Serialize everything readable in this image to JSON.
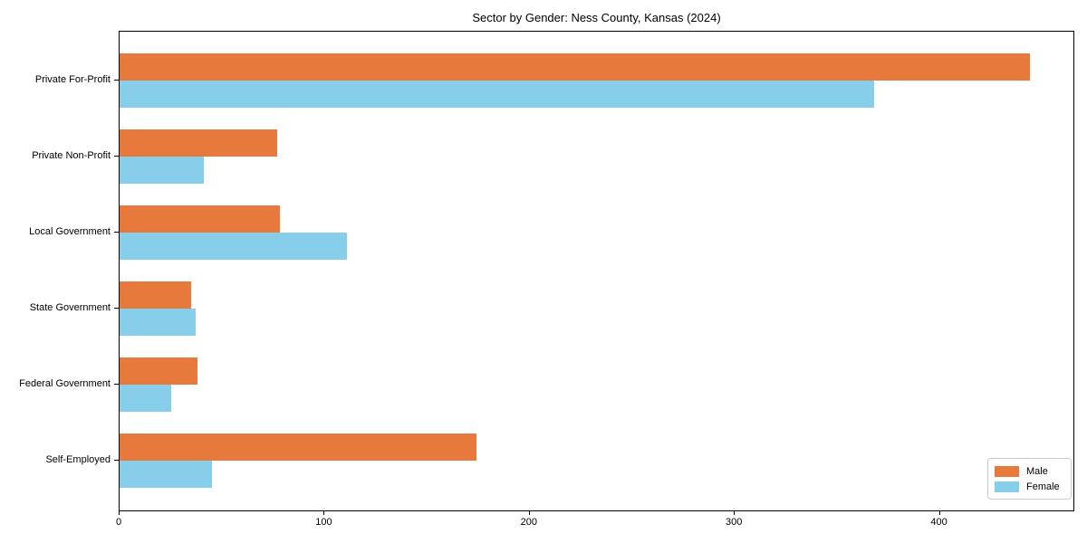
{
  "figure": {
    "title": "Sector by Gender: Ness County, Kansas (2024)"
  },
  "chart_data": {
    "type": "bar",
    "orientation": "horizontal",
    "title": "Sector by Gender: Ness County, Kansas (2024)",
    "categories": [
      "Private For-Profit",
      "Private Non-Profit",
      "Local Government",
      "State Government",
      "Federal Government",
      "Self-Employed"
    ],
    "series": [
      {
        "name": "Male",
        "color": "#e8793d",
        "values": [
          444,
          77,
          78,
          35,
          38,
          174
        ]
      },
      {
        "name": "Female",
        "color": "#87ceeb",
        "values": [
          368,
          41,
          111,
          37,
          25,
          45
        ]
      }
    ],
    "xlabel": "",
    "ylabel": "",
    "xlim": [
      0,
      466
    ],
    "xticks": [
      0,
      100,
      200,
      300,
      400
    ],
    "grid": false,
    "legend": {
      "position": "lower-right",
      "items": [
        "Male",
        "Female"
      ]
    }
  }
}
